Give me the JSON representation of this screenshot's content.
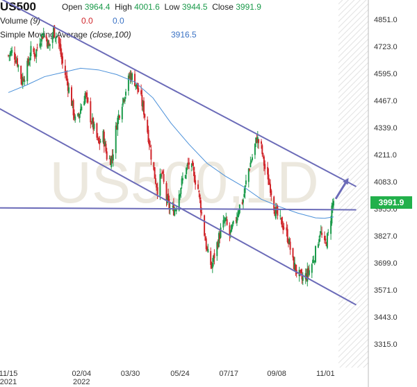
{
  "header": {
    "symbol": "US500",
    "open_label": "Open",
    "open": "3964.4",
    "high_label": "High",
    "high": "4001.6",
    "low_label": "Low",
    "low": "3944.5",
    "close_label": "Close",
    "close": "3991.9",
    "volume_label": "Volume",
    "volume_param": "(9)",
    "volume_v1": "0.0",
    "volume_v2": "0.0",
    "sma_label": "Simple Moving Average",
    "sma_param": "(close,100)",
    "sma_value": "3916.5"
  },
  "watermark": "US500,1D",
  "colors": {
    "up": "#1a9a4a",
    "down": "#d0262b",
    "sma": "#4a90d9",
    "trend": "#6b6bb8",
    "last_price_bg": "#22b04b"
  },
  "chart_data": {
    "type": "candlestick",
    "ylim": [
      3250,
      4890
    ],
    "y_ticks": [
      "4851.0",
      "4723.0",
      "4595.0",
      "4467.0",
      "4339.0",
      "4211.0",
      "4083.0",
      "3955.0",
      "3827.0",
      "3699.0",
      "3571.0",
      "3443.0",
      "3315.0"
    ],
    "x_ticks": [
      {
        "label": "11/15",
        "sub": "2021",
        "day": 0
      },
      {
        "label": "02/04",
        "sub": "2022",
        "day": 81
      },
      {
        "label": "03/30",
        "sub": "",
        "day": 135
      },
      {
        "label": "05/24",
        "sub": "",
        "day": 190
      },
      {
        "label": "07/17",
        "sub": "",
        "day": 244
      },
      {
        "label": "09/08",
        "sub": "",
        "day": 297
      },
      {
        "label": "11/01",
        "sub": "",
        "day": 351
      }
    ],
    "last_price": "3991.9",
    "closes": [
      [
        0,
        4680
      ],
      [
        5,
        4700
      ],
      [
        10,
        4650
      ],
      [
        15,
        4560
      ],
      [
        20,
        4610
      ],
      [
        25,
        4700
      ],
      [
        30,
        4690
      ],
      [
        35,
        4760
      ],
      [
        40,
        4790
      ],
      [
        45,
        4720
      ],
      [
        50,
        4800
      ],
      [
        55,
        4760
      ],
      [
        60,
        4640
      ],
      [
        65,
        4560
      ],
      [
        70,
        4460
      ],
      [
        75,
        4350
      ],
      [
        80,
        4430
      ],
      [
        85,
        4500
      ],
      [
        90,
        4400
      ],
      [
        95,
        4330
      ],
      [
        100,
        4260
      ],
      [
        105,
        4300
      ],
      [
        110,
        4180
      ],
      [
        115,
        4200
      ],
      [
        120,
        4360
      ],
      [
        125,
        4450
      ],
      [
        130,
        4520
      ],
      [
        135,
        4590
      ],
      [
        140,
        4560
      ],
      [
        145,
        4500
      ],
      [
        150,
        4420
      ],
      [
        155,
        4300
      ],
      [
        160,
        4150
      ],
      [
        165,
        4050
      ],
      [
        170,
        4120
      ],
      [
        175,
        4000
      ],
      [
        180,
        3940
      ],
      [
        185,
        3960
      ],
      [
        190,
        4050
      ],
      [
        195,
        4120
      ],
      [
        200,
        4170
      ],
      [
        205,
        4120
      ],
      [
        210,
        4050
      ],
      [
        215,
        3900
      ],
      [
        220,
        3750
      ],
      [
        225,
        3680
      ],
      [
        230,
        3770
      ],
      [
        235,
        3850
      ],
      [
        240,
        3900
      ],
      [
        245,
        3830
      ],
      [
        250,
        3880
      ],
      [
        255,
        3960
      ],
      [
        260,
        4000
      ],
      [
        265,
        4130
      ],
      [
        270,
        4200
      ],
      [
        275,
        4290
      ],
      [
        280,
        4240
      ],
      [
        285,
        4120
      ],
      [
        290,
        4060
      ],
      [
        295,
        3950
      ],
      [
        300,
        3900
      ],
      [
        305,
        3870
      ],
      [
        310,
        3810
      ],
      [
        315,
        3700
      ],
      [
        320,
        3650
      ],
      [
        325,
        3620
      ],
      [
        330,
        3640
      ],
      [
        335,
        3680
      ],
      [
        340,
        3750
      ],
      [
        345,
        3850
      ],
      [
        350,
        3780
      ],
      [
        355,
        3840
      ],
      [
        358,
        3960
      ],
      [
        360,
        3991.9
      ]
    ],
    "sma_100": [
      [
        0,
        4505
      ],
      [
        20,
        4540
      ],
      [
        40,
        4580
      ],
      [
        60,
        4600
      ],
      [
        80,
        4620
      ],
      [
        100,
        4612
      ],
      [
        120,
        4590
      ],
      [
        140,
        4555
      ],
      [
        160,
        4480
      ],
      [
        180,
        4360
      ],
      [
        200,
        4260
      ],
      [
        220,
        4170
      ],
      [
        240,
        4110
      ],
      [
        260,
        4060
      ],
      [
        280,
        4000
      ],
      [
        300,
        3965
      ],
      [
        320,
        3935
      ],
      [
        340,
        3912
      ],
      [
        350,
        3910
      ],
      [
        360,
        3916.5
      ]
    ],
    "trendlines": [
      {
        "name": "upper channel",
        "from": [
          -40,
          5020
        ],
        "to": [
          385,
          4060
        ]
      },
      {
        "name": "lower channel",
        "from": [
          -40,
          4500
        ],
        "to": [
          385,
          3500
        ]
      },
      {
        "name": "horizontal support",
        "from": [
          -40,
          3960
        ],
        "to": [
          385,
          3950
        ]
      }
    ],
    "projection_arrow": {
      "from": [
        360,
        3991.9
      ],
      "to": [
        375,
        4090
      ]
    }
  }
}
